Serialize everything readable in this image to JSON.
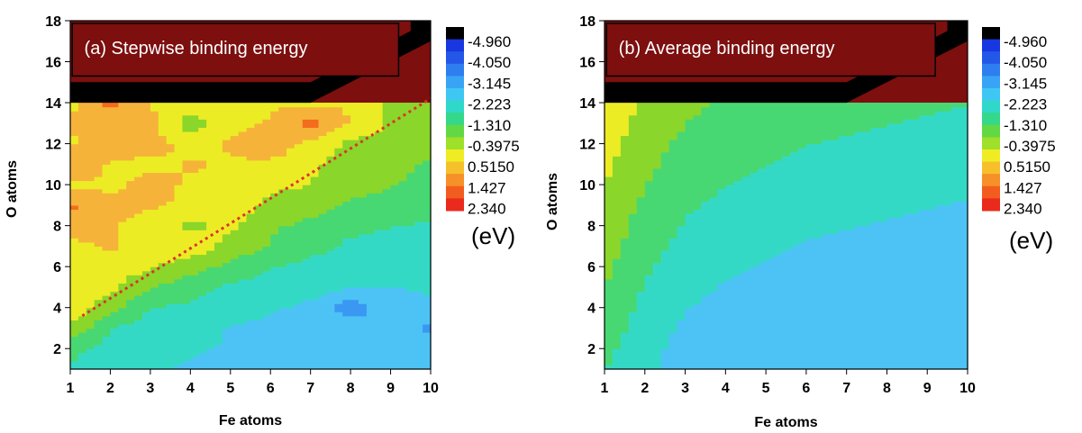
{
  "chart_data": [
    {
      "type": "heatmap",
      "title": "(a) Stepwise binding energy",
      "xlabel": "Fe atoms",
      "ylabel": "O atoms",
      "x_ticks": [
        "1",
        "2",
        "3",
        "4",
        "5",
        "6",
        "7",
        "8",
        "9",
        "10"
      ],
      "y_ticks": [
        "2",
        "4",
        "6",
        "8",
        "10",
        "12",
        "14",
        "16",
        "18"
      ],
      "xlim": [
        1,
        10
      ],
      "ylim": [
        1,
        18
      ],
      "levels": [
        -4.96,
        -4.05,
        -3.145,
        -2.223,
        -1.31,
        -0.3975,
        0.515,
        1.427,
        2.34
      ],
      "colorbar_labels": [
        "-4.960",
        "-4.050",
        "-3.145",
        "-2.223",
        "-1.310",
        "-0.3975",
        "0.5150",
        "1.427",
        "2.340"
      ],
      "colorbar_unit": "(eV)",
      "x": [
        1,
        2,
        3,
        4,
        5,
        6,
        7,
        8,
        9,
        10
      ],
      "y": [
        1,
        2,
        3,
        4,
        5,
        6,
        7,
        8,
        9,
        10,
        11,
        12,
        13,
        14
      ],
      "z": [
        [
          -2.4,
          -2.9,
          -3.1,
          -3.2,
          -3.3,
          -3.4,
          -3.4,
          -3.5,
          -3.4,
          -3.3
        ],
        [
          -1.9,
          -2.6,
          -3.0,
          -3.1,
          -3.2,
          -3.3,
          -3.5,
          -3.9,
          -3.4,
          -3.6
        ],
        [
          -0.6,
          -2.2,
          -2.6,
          -2.8,
          -3.2,
          -3.4,
          -3.6,
          -3.5,
          -3.6,
          -4.2
        ],
        [
          0.3,
          -1.0,
          -2.2,
          -2.4,
          -2.8,
          -3.0,
          -3.4,
          -4.6,
          -3.6,
          -3.4
        ],
        [
          0.0,
          -0.2,
          -1.3,
          -1.9,
          -2.4,
          -2.5,
          -2.7,
          -3.1,
          -3.2,
          -3.0
        ],
        [
          0.3,
          0.2,
          -0.3,
          -0.9,
          -1.6,
          -2.2,
          -2.5,
          -2.6,
          -2.7,
          -2.5
        ],
        [
          0.3,
          0.6,
          0.3,
          0.2,
          -0.7,
          -1.4,
          -1.9,
          -2.4,
          -2.5,
          -2.6
        ],
        [
          0.9,
          0.6,
          0.2,
          -0.6,
          -0.2,
          -1.2,
          -1.5,
          -2.0,
          -2.2,
          -2.3
        ],
        [
          1.6,
          0.8,
          0.6,
          0.4,
          0.2,
          -0.6,
          -1.0,
          -1.4,
          -1.8,
          -2.0
        ],
        [
          0.4,
          0.3,
          0.8,
          0.4,
          0.4,
          -0.2,
          -0.4,
          -1.0,
          -1.2,
          -1.8
        ],
        [
          1.5,
          0.4,
          0.3,
          0.6,
          0.4,
          0.3,
          -0.2,
          -0.8,
          -1.0,
          -1.4
        ],
        [
          0.4,
          1.2,
          0.8,
          0.3,
          0.6,
          1.2,
          0.2,
          -0.6,
          -0.8,
          -1.2
        ],
        [
          0.6,
          0.5,
          0.9,
          -0.9,
          0.3,
          0.6,
          1.8,
          0.5,
          -0.5,
          -0.8
        ],
        [
          0.3,
          1.9,
          0.4,
          0.3,
          0.2,
          0.4,
          0.3,
          0.4,
          -0.6,
          -0.7
        ]
      ]
    },
    {
      "type": "heatmap",
      "title": "(b) Average binding energy",
      "xlabel": "Fe atoms",
      "ylabel": "O atoms",
      "x_ticks": [
        "1",
        "2",
        "3",
        "4",
        "5",
        "6",
        "7",
        "8",
        "9",
        "10"
      ],
      "y_ticks": [
        "2",
        "4",
        "6",
        "8",
        "10",
        "12",
        "14",
        "16",
        "18"
      ],
      "xlim": [
        1,
        10
      ],
      "ylim": [
        1,
        18
      ],
      "levels": [
        -4.96,
        -4.05,
        -3.145,
        -2.223,
        -1.31,
        -0.3975,
        0.515,
        1.427,
        2.34
      ],
      "colorbar_labels": [
        "-4.960",
        "-4.050",
        "-3.145",
        "-2.223",
        "-1.310",
        "-0.3975",
        "0.5150",
        "1.427",
        "2.340"
      ],
      "colorbar_unit": "(eV)",
      "x": [
        1,
        2,
        3,
        4,
        5,
        6,
        7,
        8,
        9,
        10
      ],
      "y": [
        1,
        2,
        3,
        4,
        5,
        6,
        7,
        8,
        9,
        10,
        11,
        12,
        13,
        14
      ],
      "z": [
        [
          -2.2,
          -3.0,
          -3.4,
          -3.6,
          -3.7,
          -3.8,
          -3.8,
          -3.7,
          -3.6,
          -3.5
        ],
        [
          -1.9,
          -2.9,
          -3.4,
          -3.7,
          -3.8,
          -3.9,
          -3.8,
          -3.8,
          -3.7,
          -3.6
        ],
        [
          -1.7,
          -2.7,
          -3.3,
          -3.6,
          -3.8,
          -3.9,
          -4.0,
          -4.0,
          -3.9,
          -3.8
        ],
        [
          -1.5,
          -2.5,
          -3.1,
          -3.4,
          -3.6,
          -3.8,
          -3.9,
          -3.9,
          -3.9,
          -3.8
        ],
        [
          -1.3,
          -2.3,
          -2.9,
          -3.2,
          -3.4,
          -3.6,
          -3.7,
          -3.8,
          -3.8,
          -3.8
        ],
        [
          -1.1,
          -2.1,
          -2.7,
          -3.0,
          -3.2,
          -3.4,
          -3.5,
          -3.6,
          -3.7,
          -3.7
        ],
        [
          -0.9,
          -1.9,
          -2.5,
          -2.8,
          -3.0,
          -3.2,
          -3.3,
          -3.4,
          -3.5,
          -3.6
        ],
        [
          -0.7,
          -1.7,
          -2.3,
          -2.6,
          -2.8,
          -3.0,
          -3.1,
          -3.2,
          -3.3,
          -3.4
        ],
        [
          -0.6,
          -1.5,
          -2.1,
          -2.4,
          -2.6,
          -2.8,
          -2.9,
          -3.0,
          -3.1,
          -3.2
        ],
        [
          -0.4,
          -1.3,
          -1.9,
          -2.2,
          -2.4,
          -2.6,
          -2.7,
          -2.8,
          -2.9,
          -3.0
        ],
        [
          -0.2,
          -1.1,
          -1.7,
          -2.0,
          -2.2,
          -2.4,
          -2.5,
          -2.6,
          -2.7,
          -2.8
        ],
        [
          0.0,
          -1.0,
          -1.5,
          -1.8,
          -2.0,
          -2.2,
          -2.3,
          -2.4,
          -2.5,
          -2.6
        ],
        [
          0.3,
          -0.8,
          -1.3,
          -1.6,
          -1.9,
          -2.0,
          -2.1,
          -2.2,
          -2.3,
          -2.4
        ],
        [
          0.6,
          -0.6,
          -1.1,
          -1.4,
          -1.7,
          -1.8,
          -1.9,
          -2.0,
          -2.1,
          -2.2
        ]
      ]
    }
  ]
}
